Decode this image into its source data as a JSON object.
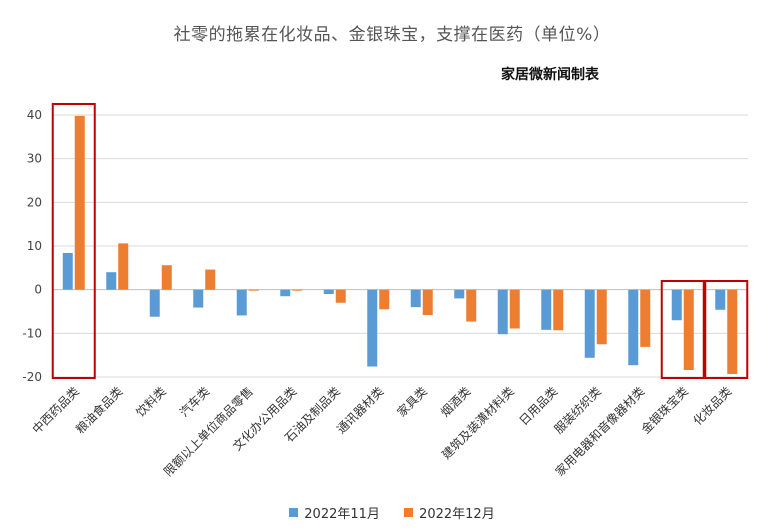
{
  "title": "社零的拖累在化妆品、金银珠宝，支撑在医药（单位%）",
  "watermark": "家居微新闻制表",
  "colors": {
    "series1": "#5b9bd5",
    "series2": "#ed7d31",
    "highlight": "#c00000",
    "grid": "#d9d9d9"
  },
  "chart_data": {
    "type": "bar",
    "categories": [
      "中西药品类",
      "粮油食品类",
      "饮料类",
      "汽车类",
      "限额以上单位商品零售",
      "文化办公用品类",
      "石油及制品类",
      "通讯器材类",
      "家具类",
      "烟酒类",
      "建筑及装潢材料类",
      "日用品类",
      "服装纺织类",
      "家用电器和音像器材类",
      "金银珠宝类",
      "化妆品类"
    ],
    "series": [
      {
        "name": "2022年11月",
        "values": [
          8.4,
          4.0,
          -6.2,
          -4.1,
          -5.9,
          -1.5,
          -1.0,
          -17.6,
          -4.0,
          -2.0,
          -10.2,
          -9.2,
          -15.6,
          -17.3,
          -7.0,
          -4.6
        ]
      },
      {
        "name": "2022年12月",
        "values": [
          39.8,
          10.6,
          5.6,
          4.6,
          -0.2,
          -0.2,
          -3.0,
          -4.5,
          -5.8,
          -7.3,
          -8.9,
          -9.3,
          -12.5,
          -13.1,
          -18.4,
          -19.3
        ]
      }
    ],
    "ylim": [
      -20,
      40
    ],
    "yticks": [
      -20,
      -10,
      0,
      10,
      20,
      30,
      40
    ],
    "grid": "horizontal",
    "legend": "bottom",
    "highlighted_categories": [
      "中西药品类",
      "金银珠宝类",
      "化妆品类"
    ]
  }
}
